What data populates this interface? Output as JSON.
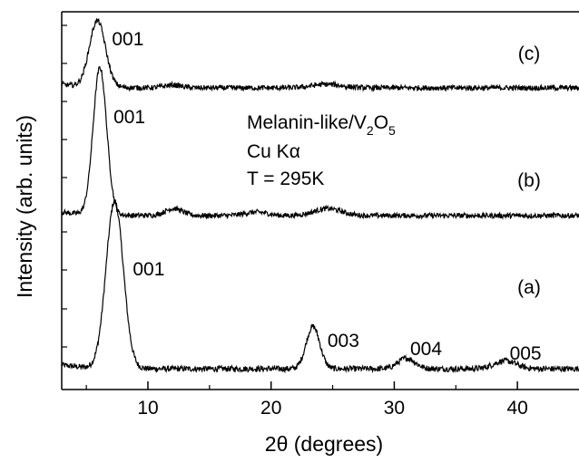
{
  "chart_data": {
    "type": "line",
    "xlabel_prefix": "2",
    "xlabel_symbol": "θ",
    "xlabel_suffix": " (degrees)",
    "ylabel": "Intensity (arb. units)",
    "xlim": [
      3,
      45
    ],
    "xticks": [
      10,
      20,
      30,
      40
    ],
    "y_scale": "arbitrary, offset stacked",
    "grid": false,
    "info": {
      "line1_prefix": "Melanin-like/V",
      "line1_sub1": "2",
      "line1_mid": "O",
      "line1_sub2": "5",
      "line2_prefix": "Cu K",
      "line2_symbol": "α",
      "line3": "T = 295K"
    },
    "series": [
      {
        "name": "(a)",
        "baseline": 0.02,
        "peaks": [
          {
            "x": 7.3,
            "height": 0.63,
            "width": 0.7,
            "label": "001"
          },
          {
            "x": 23.4,
            "height": 0.16,
            "width": 0.55,
            "label": "003"
          },
          {
            "x": 31.0,
            "height": 0.04,
            "width": 0.7,
            "label": "004"
          },
          {
            "x": 39.0,
            "height": 0.03,
            "width": 0.9,
            "label": "005"
          }
        ]
      },
      {
        "name": "(b)",
        "baseline": 0.0,
        "peaks": [
          {
            "x": 6.1,
            "height": 0.63,
            "width": 0.55,
            "label": "001"
          },
          {
            "x": 12.1,
            "height": 0.03,
            "width": 0.7,
            "label": ""
          },
          {
            "x": 18.8,
            "height": 0.015,
            "width": 0.9,
            "label": ""
          },
          {
            "x": 24.6,
            "height": 0.03,
            "width": 1.1,
            "label": ""
          }
        ]
      },
      {
        "name": "(c)",
        "baseline": 0.0,
        "peaks": [
          {
            "x": 5.9,
            "height": 0.28,
            "width": 0.65,
            "label": "001"
          },
          {
            "x": 12.0,
            "height": 0.012,
            "width": 0.7,
            "label": ""
          },
          {
            "x": 24.5,
            "height": 0.015,
            "width": 1.2,
            "label": ""
          }
        ]
      }
    ]
  }
}
